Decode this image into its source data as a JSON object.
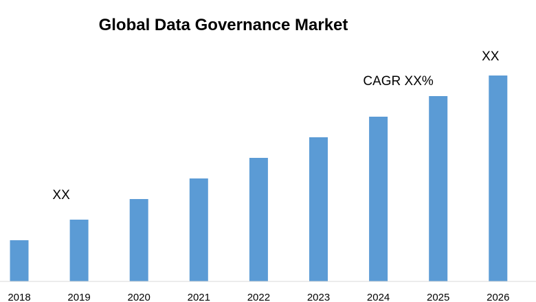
{
  "chart_data": {
    "type": "bar",
    "title": "Global Data Governance Market",
    "categories": [
      "2018",
      "2019",
      "2020",
      "2021",
      "2022",
      "2023",
      "2024",
      "2025",
      "2026"
    ],
    "values": [
      2.0,
      3.0,
      4.0,
      5.0,
      6.0,
      7.0,
      8.0,
      9.0,
      10.0
    ],
    "ylim": [
      0,
      10.5
    ],
    "xlabel": "",
    "ylabel": "",
    "grid": false,
    "legend": "none",
    "bar_color": "#5b9bd5",
    "annotations": [
      {
        "text": "XX",
        "category": "2019"
      },
      {
        "text": "CAGR XX%",
        "category": "2024"
      },
      {
        "text": "XX",
        "category": "2026"
      }
    ]
  }
}
